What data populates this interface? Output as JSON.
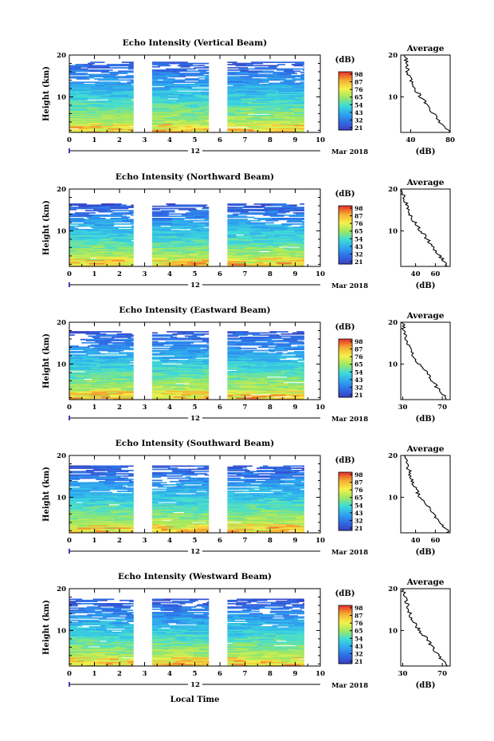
{
  "figure": {
    "xlabel": "Local Time",
    "date_label": "12",
    "month_year": "Mar 2018",
    "ylabel": "Height (km)",
    "avg_title": "Average",
    "avg_xlabel": "(dB)",
    "colorbar_unit": "(dB)"
  },
  "chart_data": [
    {
      "type": "heatmap",
      "title": "Echo Intensity (Vertical Beam)",
      "xlabel": "Local Time",
      "ylabel": "Height (km)",
      "xlim": [
        0,
        10
      ],
      "ylim": [
        1.5,
        20
      ],
      "x_ticks": [
        0,
        1,
        2,
        3,
        4,
        5,
        6,
        7,
        8,
        9,
        10
      ],
      "y_ticks": [
        10,
        20
      ],
      "data_x_ranges": [
        [
          0,
          2.55
        ],
        [
          3.3,
          5.55
        ],
        [
          6.3,
          9.35
        ]
      ],
      "colorbar": {
        "ticks": [
          21,
          32,
          43,
          54,
          65,
          76,
          87,
          98
        ],
        "min": 21,
        "max": 98,
        "colors": [
          "#3b3dbf",
          "#2f6de6",
          "#2fa8f0",
          "#3fdcd8",
          "#9fe860",
          "#f5f04a",
          "#f5b030",
          "#e8322a"
        ]
      },
      "signal_top_km": 18.5,
      "average_profile": {
        "xlim": [
          30,
          80
        ],
        "x_ticks": [
          40,
          80
        ],
        "y_ticks": [
          10,
          20
        ],
        "height": [
          2,
          4,
          6,
          8,
          10,
          12,
          14,
          16,
          18,
          20
        ],
        "value": [
          78,
          70,
          63,
          57,
          50,
          44,
          40,
          37,
          36,
          34
        ]
      }
    },
    {
      "type": "heatmap",
      "title": "Echo Intensity (Northward Beam)",
      "xlabel": "Local Time",
      "ylabel": "Height (km)",
      "xlim": [
        0,
        10
      ],
      "ylim": [
        1.5,
        20
      ],
      "x_ticks": [
        0,
        1,
        2,
        3,
        4,
        5,
        6,
        7,
        8,
        9,
        10
      ],
      "y_ticks": [
        10,
        20
      ],
      "data_x_ranges": [
        [
          0,
          2.55
        ],
        [
          3.3,
          5.55
        ],
        [
          6.3,
          9.35
        ]
      ],
      "colorbar": {
        "ticks": [
          21,
          32,
          43,
          54,
          65,
          76,
          87,
          98
        ],
        "min": 21,
        "max": 98,
        "colors": [
          "#3b3dbf",
          "#2f6de6",
          "#2fa8f0",
          "#3fdcd8",
          "#9fe860",
          "#f5f04a",
          "#f5b030",
          "#e8322a"
        ]
      },
      "signal_top_km": 16.5,
      "average_profile": {
        "xlim": [
          25,
          75
        ],
        "x_ticks": [
          40,
          60
        ],
        "y_ticks": [
          10,
          20
        ],
        "height": [
          2,
          4,
          6,
          8,
          10,
          12,
          14,
          16,
          18,
          20
        ],
        "value": [
          72,
          64,
          58,
          52,
          45,
          39,
          34,
          31,
          28,
          27
        ]
      }
    },
    {
      "type": "heatmap",
      "title": "Echo Intensity (Eastward Beam)",
      "xlabel": "Local Time",
      "ylabel": "Height (km)",
      "xlim": [
        0,
        10
      ],
      "ylim": [
        1.5,
        20
      ],
      "x_ticks": [
        0,
        1,
        2,
        3,
        4,
        5,
        6,
        7,
        8,
        9,
        10
      ],
      "y_ticks": [
        10,
        20
      ],
      "data_x_ranges": [
        [
          0,
          2.55
        ],
        [
          3.3,
          5.55
        ],
        [
          6.3,
          9.35
        ]
      ],
      "colorbar": {
        "ticks": [
          21,
          32,
          43,
          54,
          65,
          76,
          87,
          98
        ],
        "min": 21,
        "max": 98,
        "colors": [
          "#3b3dbf",
          "#2f6de6",
          "#2fa8f0",
          "#3fdcd8",
          "#9fe860",
          "#f5f04a",
          "#f5b030",
          "#e8322a"
        ]
      },
      "signal_top_km": 18.0,
      "average_profile": {
        "xlim": [
          28,
          78
        ],
        "x_ticks": [
          30,
          70
        ],
        "y_ticks": [
          10,
          20
        ],
        "height": [
          2,
          4,
          6,
          8,
          10,
          12,
          14,
          16,
          18,
          20
        ],
        "value": [
          74,
          66,
          60,
          54,
          46,
          40,
          36,
          34,
          31,
          30
        ]
      }
    },
    {
      "type": "heatmap",
      "title": "Echo Intensity (Southward Beam)",
      "xlabel": "Local Time",
      "ylabel": "Height (km)",
      "xlim": [
        0,
        10
      ],
      "ylim": [
        1.5,
        20
      ],
      "x_ticks": [
        0,
        1,
        2,
        3,
        4,
        5,
        6,
        7,
        8,
        9,
        10
      ],
      "y_ticks": [
        10,
        20
      ],
      "data_x_ranges": [
        [
          0,
          2.55
        ],
        [
          3.3,
          5.55
        ],
        [
          6.3,
          9.35
        ]
      ],
      "colorbar": {
        "ticks": [
          21,
          32,
          43,
          54,
          65,
          76,
          87,
          98
        ],
        "min": 21,
        "max": 98,
        "colors": [
          "#3b3dbf",
          "#2f6de6",
          "#2fa8f0",
          "#3fdcd8",
          "#9fe860",
          "#f5f04a",
          "#f5b030",
          "#e8322a"
        ]
      },
      "signal_top_km": 17.5,
      "average_profile": {
        "xlim": [
          25,
          75
        ],
        "x_ticks": [
          40,
          60
        ],
        "y_ticks": [
          10,
          20
        ],
        "height": [
          2,
          4,
          6,
          8,
          10,
          12,
          14,
          16,
          18,
          20
        ],
        "value": [
          72,
          64,
          58,
          52,
          45,
          40,
          36,
          34,
          31,
          28
        ]
      }
    },
    {
      "type": "heatmap",
      "title": "Echo Intensity (Westward Beam)",
      "xlabel": "Local Time",
      "ylabel": "Height (km)",
      "xlim": [
        0,
        10
      ],
      "ylim": [
        1.5,
        20
      ],
      "x_ticks": [
        0,
        1,
        2,
        3,
        4,
        5,
        6,
        7,
        8,
        9,
        10
      ],
      "y_ticks": [
        10,
        20
      ],
      "data_x_ranges": [
        [
          0,
          2.55
        ],
        [
          3.3,
          5.55
        ],
        [
          6.3,
          9.35
        ]
      ],
      "colorbar": {
        "ticks": [
          21,
          32,
          43,
          54,
          65,
          76,
          87,
          98
        ],
        "min": 21,
        "max": 98,
        "colors": [
          "#3b3dbf",
          "#2f6de6",
          "#2fa8f0",
          "#3fdcd8",
          "#9fe860",
          "#f5f04a",
          "#f5b030",
          "#e8322a"
        ]
      },
      "signal_top_km": 17.5,
      "average_profile": {
        "xlim": [
          28,
          78
        ],
        "x_ticks": [
          30,
          70
        ],
        "y_ticks": [
          10,
          20
        ],
        "height": [
          2,
          4,
          6,
          8,
          10,
          12,
          14,
          16,
          18,
          20
        ],
        "value": [
          74,
          66,
          60,
          54,
          47,
          41,
          37,
          35,
          32,
          30
        ]
      }
    }
  ]
}
